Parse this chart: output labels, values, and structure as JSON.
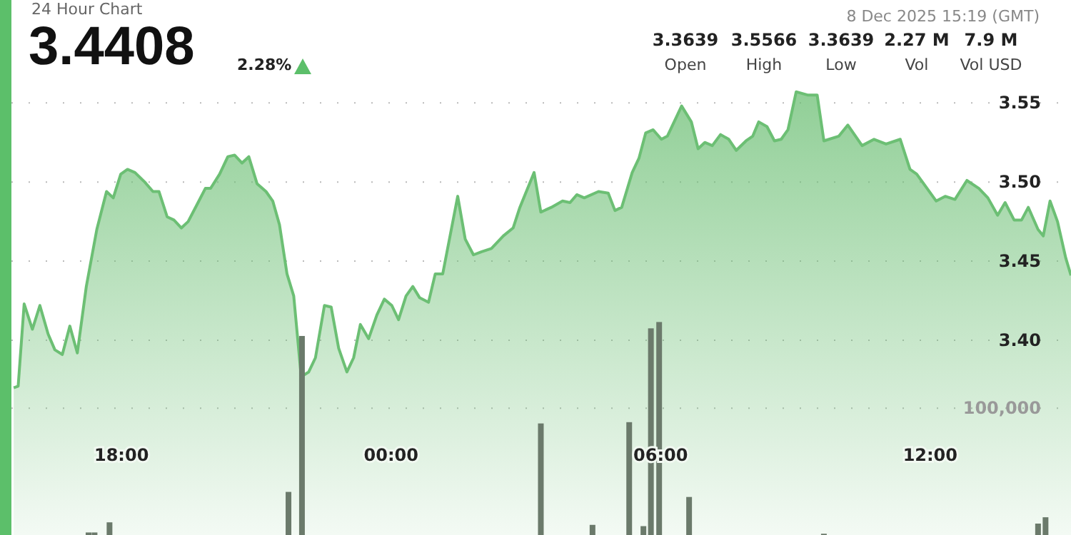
{
  "chart_data": {
    "type": "area",
    "title": "24 Hour Chart",
    "annotations": [
      "3.4408",
      "2.28%",
      "8 Dec 2025 15:19 (GMT)",
      "3.3639",
      "Open",
      "3.5566",
      "High",
      "3.3639",
      "Low",
      "2.27 M",
      "Vol",
      "7.9 M",
      "Vol USD"
    ],
    "xlim": [
      "2025-12-07T15:33",
      "2025-12-08T15:08"
    ],
    "xticks": [
      {
        "value": "2025-12-07T18:00",
        "label": "18:00"
      },
      {
        "value": "2025-12-08T00:00",
        "label": "00:00"
      },
      {
        "value": "2025-12-08T06:00",
        "label": "06:00"
      },
      {
        "value": "2025-12-08T12:00",
        "label": "12:00"
      }
    ],
    "ylim": [
      3.277,
      3.615
    ],
    "yticks": [
      {
        "value": 3.4,
        "label": "3.40"
      },
      3.45,
      {
        "value": 3.5,
        "label": "3.50"
      },
      3.55
    ],
    "y2lim": [
      0,
      422000
    ],
    "y2ticks": [
      {
        "value": 100000,
        "label": "100,000"
      }
    ],
    "grid": "y",
    "marker": "none",
    "line_style": "solid",
    "series": [
      {
        "type": "bar",
        "axis": "y2",
        "color": "#6b7a6b",
        "x": [
          "2025-12-07T17:16",
          "2025-12-07T17:24",
          "2025-12-07T17:44",
          "2025-12-07T21:43",
          "2025-12-07T22:01",
          "2025-12-08T03:20",
          "2025-12-08T04:29",
          "2025-12-08T05:18",
          "2025-12-08T05:37",
          "2025-12-08T05:47",
          "2025-12-08T05:58",
          "2025-12-08T06:38",
          "2025-12-08T09:38",
          "2025-12-08T14:24",
          "2025-12-08T14:34"
        ],
        "values": [
          2000,
          2000,
          10000,
          34000,
          157000,
          88000,
          8000,
          89000,
          7000,
          163000,
          168000,
          30000,
          1000,
          9000,
          14000
        ]
      },
      {
        "color": "#6cbf74",
        "x": [
          "2025-12-07T15:36",
          "2025-12-07T15:42",
          "2025-12-07T15:50",
          "2025-12-07T16:01",
          "2025-12-07T16:11",
          "2025-12-07T16:22",
          "2025-12-07T16:31",
          "2025-12-07T16:41",
          "2025-12-07T16:51",
          "2025-12-07T17:01",
          "2025-12-07T17:13",
          "2025-12-07T17:27",
          "2025-12-07T17:40",
          "2025-12-07T17:49",
          "2025-12-07T17:59",
          "2025-12-07T18:08",
          "2025-12-07T18:18",
          "2025-12-07T18:31",
          "2025-12-07T18:42",
          "2025-12-07T18:50",
          "2025-12-07T19:01",
          "2025-12-07T19:10",
          "2025-12-07T19:20",
          "2025-12-07T19:29",
          "2025-12-07T19:40",
          "2025-12-07T19:52",
          "2025-12-07T19:59",
          "2025-12-07T20:11",
          "2025-12-07T20:22",
          "2025-12-07T20:31",
          "2025-12-07T20:41",
          "2025-12-07T20:50",
          "2025-12-07T21:01",
          "2025-12-07T21:13",
          "2025-12-07T21:22",
          "2025-12-07T21:31",
          "2025-12-07T21:41",
          "2025-12-07T21:50",
          "2025-12-07T22:00",
          "2025-12-07T22:10",
          "2025-12-07T22:19",
          "2025-12-07T22:31",
          "2025-12-07T22:40",
          "2025-12-07T22:50",
          "2025-12-07T23:01",
          "2025-12-07T23:10",
          "2025-12-07T23:19",
          "2025-12-07T23:30",
          "2025-12-07T23:41",
          "2025-12-07T23:51",
          "2025-12-08T00:01",
          "2025-12-08T00:10",
          "2025-12-08T00:20",
          "2025-12-08T00:29",
          "2025-12-08T00:38",
          "2025-12-08T00:50",
          "2025-12-08T00:59",
          "2025-12-08T01:09",
          "2025-12-08T01:29",
          "2025-12-08T01:39",
          "2025-12-08T01:50",
          "2025-12-08T02:01",
          "2025-12-08T02:14",
          "2025-12-08T02:30",
          "2025-12-08T02:43",
          "2025-12-08T02:52",
          "2025-12-08T03:11",
          "2025-12-08T03:20",
          "2025-12-08T03:34",
          "2025-12-08T03:49",
          "2025-12-08T03:59",
          "2025-12-08T04:08",
          "2025-12-08T04:18",
          "2025-12-08T04:37",
          "2025-12-08T04:50",
          "2025-12-08T04:59",
          "2025-12-08T05:08",
          "2025-12-08T05:22",
          "2025-12-08T05:31",
          "2025-12-08T05:40",
          "2025-12-08T05:50",
          "2025-12-08T06:01",
          "2025-12-08T06:09",
          "2025-12-08T06:28",
          "2025-12-08T06:41",
          "2025-12-08T06:50",
          "2025-12-08T06:59",
          "2025-12-08T07:09",
          "2025-12-08T07:20",
          "2025-12-08T07:31",
          "2025-12-08T07:41",
          "2025-12-08T07:54",
          "2025-12-08T08:03",
          "2025-12-08T08:11",
          "2025-12-08T08:22",
          "2025-12-08T08:32",
          "2025-12-08T08:41",
          "2025-12-08T08:50",
          "2025-12-08T09:01",
          "2025-12-08T09:16",
          "2025-12-08T09:29",
          "2025-12-08T09:38",
          "2025-12-08T09:58",
          "2025-12-08T10:10",
          "2025-12-08T10:29",
          "2025-12-08T10:45",
          "2025-12-08T11:01",
          "2025-12-08T11:20",
          "2025-12-08T11:33",
          "2025-12-08T11:42",
          "2025-12-08T12:08",
          "2025-12-08T12:20",
          "2025-12-08T12:33",
          "2025-12-08T12:49",
          "2025-12-08T13:05",
          "2025-12-08T13:17",
          "2025-12-08T13:30",
          "2025-12-08T13:40",
          "2025-12-08T13:52",
          "2025-12-08T14:02",
          "2025-12-08T14:11",
          "2025-12-08T14:24",
          "2025-12-08T14:31",
          "2025-12-08T14:40",
          "2025-12-08T14:50",
          "2025-12-08T15:01",
          "2025-12-08T15:08"
        ],
        "values": [
          3.37,
          3.371,
          3.423,
          3.407,
          3.422,
          3.404,
          3.394,
          3.391,
          3.409,
          3.392,
          3.434,
          3.47,
          3.494,
          3.49,
          3.505,
          3.508,
          3.506,
          3.5,
          3.494,
          3.494,
          3.478,
          3.476,
          3.471,
          3.475,
          3.485,
          3.496,
          3.496,
          3.505,
          3.516,
          3.517,
          3.512,
          3.516,
          3.499,
          3.494,
          3.488,
          3.473,
          3.442,
          3.428,
          3.377,
          3.38,
          3.389,
          3.422,
          3.421,
          3.395,
          3.38,
          3.389,
          3.41,
          3.401,
          3.416,
          3.426,
          3.422,
          3.413,
          3.428,
          3.434,
          3.427,
          3.424,
          3.442,
          3.442,
          3.491,
          3.464,
          3.454,
          3.456,
          3.458,
          3.466,
          3.471,
          3.484,
          3.506,
          3.481,
          3.484,
          3.488,
          3.487,
          3.492,
          3.49,
          3.494,
          3.493,
          3.482,
          3.484,
          3.506,
          3.515,
          3.531,
          3.533,
          3.527,
          3.529,
          3.548,
          3.538,
          3.521,
          3.525,
          3.523,
          3.53,
          3.527,
          3.52,
          3.526,
          3.529,
          3.538,
          3.535,
          3.526,
          3.527,
          3.533,
          3.557,
          3.555,
          3.555,
          3.526,
          3.529,
          3.536,
          3.523,
          3.527,
          3.524,
          3.527,
          3.508,
          3.505,
          3.488,
          3.491,
          3.489,
          3.501,
          3.496,
          3.49,
          3.479,
          3.487,
          3.476,
          3.476,
          3.484,
          3.47,
          3.466,
          3.488,
          3.475,
          3.452,
          3.441
        ]
      }
    ]
  }
}
